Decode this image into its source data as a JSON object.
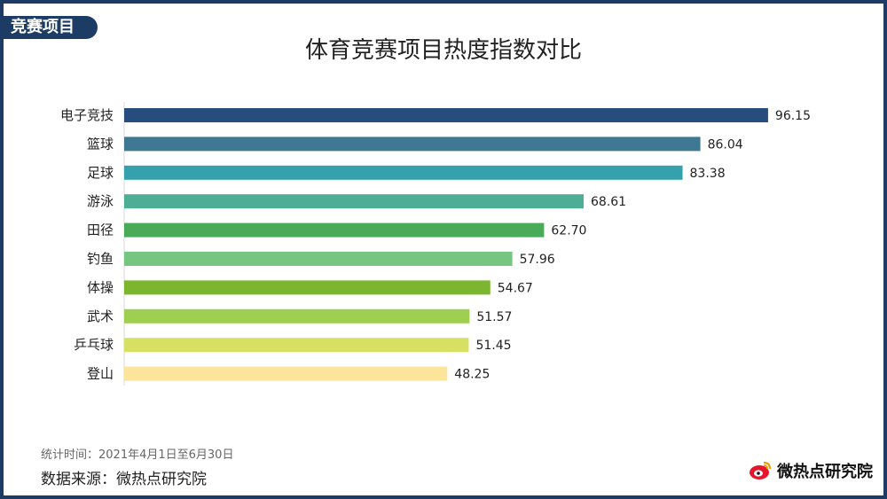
{
  "tag": "竞赛项目",
  "footer": {
    "period": "统计时间：2021年4月1日至6月30日",
    "source": "数据来源：微热点研究院"
  },
  "logo": {
    "text": "微热点研究院",
    "icon": "weibo-eye-icon"
  },
  "chart_data": {
    "type": "bar",
    "orientation": "horizontal",
    "title": "体育竞赛项目热度指数对比",
    "categories": [
      "电子竞技",
      "篮球",
      "足球",
      "游泳",
      "田径",
      "钓鱼",
      "体操",
      "武术",
      "乒乓球",
      "登山"
    ],
    "values": [
      96.15,
      86.04,
      83.38,
      68.61,
      62.7,
      57.96,
      54.67,
      51.57,
      51.45,
      48.25
    ],
    "value_labels": [
      "96.15",
      "86.04",
      "83.38",
      "68.61",
      "62.70",
      "57.96",
      "54.67",
      "51.57",
      "51.45",
      "48.25"
    ],
    "colors": [
      "#274c7e",
      "#3f7892",
      "#34a1ac",
      "#4dae95",
      "#49aa57",
      "#76c581",
      "#7cb62f",
      "#9fcf50",
      "#d8e063",
      "#fde49b"
    ],
    "xlim": [
      0,
      100
    ],
    "grid": false,
    "legend": "none"
  }
}
